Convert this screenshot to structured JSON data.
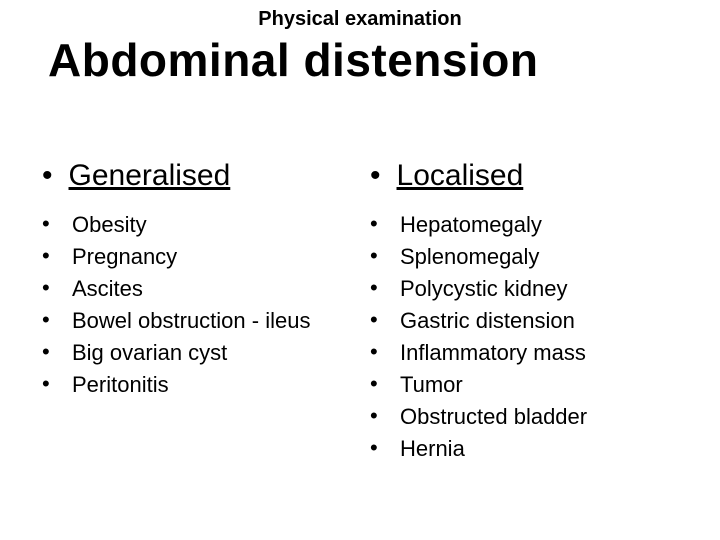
{
  "supertitle": "Physical examination",
  "title": "Abdominal distension",
  "columns": [
    {
      "header": "Generalised",
      "items": [
        "Obesity",
        "Pregnancy",
        "Ascites",
        "Bowel obstruction - ileus",
        "Big ovarian cyst",
        "Peritonitis"
      ]
    },
    {
      "header": "Localised",
      "items": [
        "Hepatomegaly",
        "Splenomegaly",
        "Polycystic kidney",
        "Gastric distension",
        "Inflammatory mass",
        "Tumor",
        "Obstructed bladder",
        "Hernia"
      ]
    }
  ],
  "colors": {
    "background": "#ffffff",
    "text": "#000000"
  },
  "typography": {
    "supertitle_size": 20,
    "title_size": 46,
    "header_size": 30,
    "item_size": 22,
    "font_family": "Arial"
  }
}
